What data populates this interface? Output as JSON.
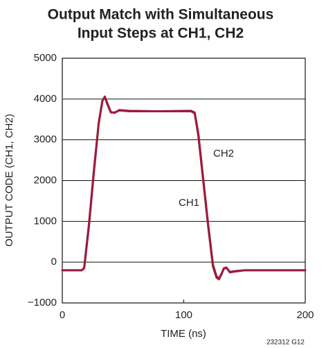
{
  "chart_data": {
    "type": "line",
    "title": [
      "Output Match with Simultaneous",
      "Input Steps at CH1, CH2"
    ],
    "x_label": "TIME (ns)",
    "y_label": "OUTPUT CODE (CH1, CH2)",
    "footnote": "232312 G12",
    "x": [
      0,
      10,
      16,
      18,
      22,
      26,
      30,
      33,
      35,
      37,
      40,
      43,
      47,
      55,
      80,
      106,
      109,
      112,
      116,
      120,
      124,
      127,
      129,
      131,
      133,
      135,
      138,
      142,
      150,
      200
    ],
    "series": [
      {
        "name": "CH1",
        "color": "#9b1c3c",
        "values": [
          -200,
          -200,
          -200,
          -150,
          900,
          2200,
          3400,
          3950,
          4060,
          3900,
          3680,
          3660,
          3730,
          3710,
          3700,
          3700,
          3650,
          3100,
          2000,
          900,
          -100,
          -380,
          -420,
          -300,
          -150,
          -130,
          -250,
          -230,
          -200,
          -200
        ]
      },
      {
        "name": "CH2",
        "color": "#9b1c3c",
        "values": [
          -200,
          -200,
          -200,
          -140,
          950,
          2250,
          3420,
          3960,
          4050,
          3880,
          3670,
          3670,
          3720,
          3700,
          3700,
          3710,
          3670,
          3150,
          2050,
          950,
          -60,
          -350,
          -400,
          -290,
          -160,
          -140,
          -240,
          -220,
          -200,
          -200
        ]
      }
    ],
    "xlim": [
      0,
      200
    ],
    "xticks": [
      0,
      100,
      200
    ],
    "ylim": [
      -1000,
      5000
    ],
    "yticks": [
      {
        "value": -1000,
        "label": "−1000"
      },
      0,
      1000,
      2000,
      3000,
      4000,
      5000
    ],
    "grid": true
  }
}
